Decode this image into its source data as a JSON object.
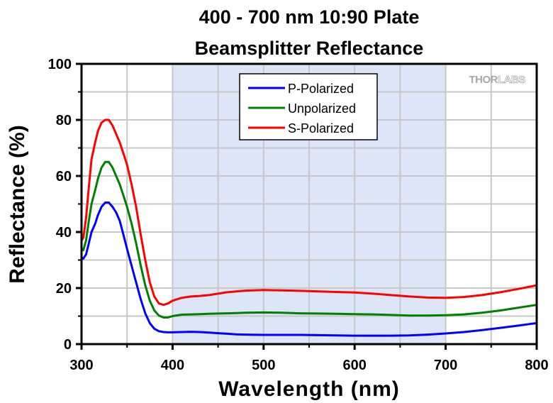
{
  "chart_data": {
    "type": "line",
    "title": [
      "400 - 700 nm 10:90 Plate",
      "Beamsplitter Reflectance"
    ],
    "xlabel": "Wavelength (nm)",
    "ylabel": "Reflectance (%)",
    "xlim": [
      300,
      800
    ],
    "ylim": [
      0,
      100
    ],
    "xticks": [
      300,
      400,
      500,
      600,
      700,
      800
    ],
    "xtick_labels": [
      "300",
      "400",
      "500",
      "600",
      "700",
      "800"
    ],
    "xminor": [
      350,
      450,
      550,
      650,
      750
    ],
    "yticks": [
      0,
      20,
      40,
      60,
      80,
      100
    ],
    "ytick_labels": [
      "0",
      "20",
      "40",
      "60",
      "80",
      "100"
    ],
    "yminor": [
      10,
      30,
      50,
      70,
      90
    ],
    "grid": true,
    "shaded_region": {
      "x": [
        400,
        700
      ],
      "color": "#dde6f6"
    },
    "legend_position": "top-center",
    "watermark": {
      "part1": "THOR",
      "part2": "LABS"
    },
    "series": [
      {
        "name": "P-Polarized",
        "color": "#0000ff",
        "x": [
          300,
          302,
          305,
          308,
          311,
          315,
          318,
          322,
          326,
          330,
          334,
          338,
          342,
          346,
          350,
          355,
          360,
          365,
          370,
          375,
          380,
          385,
          390,
          395,
          400,
          410,
          420,
          430,
          440,
          450,
          460,
          470,
          480,
          500,
          520,
          540,
          560,
          580,
          600,
          620,
          640,
          660,
          680,
          700,
          720,
          740,
          760,
          780,
          800
        ],
        "y": [
          31,
          30.5,
          32,
          36,
          40,
          43,
          46,
          49,
          50.5,
          50.5,
          49,
          47,
          44,
          39,
          34,
          28,
          22,
          16,
          11,
          7.5,
          5.5,
          4.6,
          4.3,
          4.2,
          4.2,
          4.3,
          4.4,
          4.3,
          4.1,
          3.9,
          3.7,
          3.5,
          3.4,
          3.3,
          3.3,
          3.3,
          3.2,
          3.1,
          3.0,
          3.0,
          3.0,
          3.1,
          3.4,
          3.8,
          4.3,
          5.0,
          5.8,
          6.6,
          7.5
        ]
      },
      {
        "name": "Unpolarized",
        "color": "#008000",
        "x": [
          300,
          302,
          305,
          308,
          311,
          315,
          318,
          322,
          326,
          330,
          334,
          338,
          342,
          346,
          350,
          355,
          360,
          365,
          370,
          375,
          380,
          385,
          390,
          395,
          400,
          410,
          420,
          430,
          440,
          450,
          460,
          470,
          480,
          500,
          520,
          540,
          560,
          580,
          600,
          620,
          640,
          660,
          680,
          700,
          720,
          740,
          760,
          780,
          800
        ],
        "y": [
          34,
          33.5,
          37,
          44,
          50,
          55,
          59,
          63,
          65,
          65,
          63,
          60,
          57,
          53,
          49,
          43,
          36,
          28,
          21,
          15.5,
          12,
          10.2,
          9.5,
          9.5,
          10,
          10.5,
          10.6,
          10.7,
          10.8,
          10.9,
          11.0,
          11.1,
          11.2,
          11.3,
          11.2,
          11.0,
          10.9,
          10.8,
          10.7,
          10.6,
          10.4,
          10.2,
          10.2,
          10.3,
          10.6,
          11.2,
          12.0,
          13.0,
          14.0
        ]
      },
      {
        "name": "S-Polarized",
        "color": "#ff0000",
        "x": [
          300,
          302,
          305,
          308,
          311,
          315,
          318,
          322,
          326,
          330,
          334,
          338,
          342,
          346,
          350,
          355,
          360,
          365,
          370,
          375,
          380,
          385,
          390,
          395,
          400,
          410,
          420,
          430,
          440,
          450,
          460,
          470,
          480,
          500,
          520,
          540,
          560,
          580,
          600,
          620,
          640,
          660,
          680,
          700,
          720,
          740,
          760,
          780,
          800
        ],
        "y": [
          37,
          38,
          45,
          56,
          66,
          72,
          76,
          79,
          80,
          80,
          78,
          75,
          72,
          68,
          64,
          57,
          49,
          39,
          30,
          22,
          17,
          14.5,
          14,
          14.5,
          15.5,
          16.5,
          17,
          17.2,
          17.5,
          18,
          18.5,
          18.8,
          19.1,
          19.3,
          19.2,
          19.0,
          18.8,
          18.6,
          18.4,
          18.0,
          17.5,
          17.0,
          16.6,
          16.5,
          16.8,
          17.5,
          18.5,
          19.7,
          21.0
        ]
      }
    ]
  }
}
